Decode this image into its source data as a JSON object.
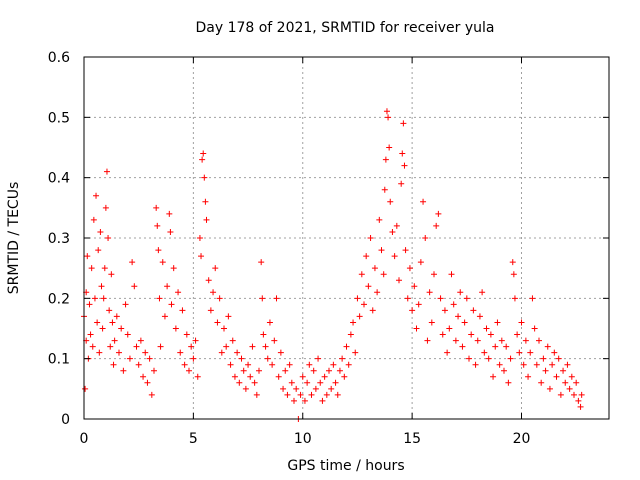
{
  "chart_data": {
    "type": "scatter",
    "title": "Day 178 of 2021, SRMTID for receiver yula",
    "xlabel": "GPS time / hours",
    "ylabel": "SRMTID / TECUs",
    "xlim": [
      0,
      24
    ],
    "ylim": [
      0,
      0.6
    ],
    "xticks": [
      0,
      5,
      10,
      15,
      20
    ],
    "yticks": [
      0,
      0.1,
      0.2,
      0.3,
      0.4,
      0.5,
      0.6
    ],
    "xtick_labels": [
      "0",
      "5",
      "10",
      "15",
      "20"
    ],
    "ytick_labels": [
      "0",
      "0.1",
      "0.2",
      "0.3",
      "0.4",
      "0.5",
      "0.6"
    ],
    "grid": true,
    "marker": "+",
    "color": "#ff0000",
    "series": [
      {
        "name": "SRMTID",
        "points": [
          [
            0.0,
            0.17
          ],
          [
            0.05,
            0.05
          ],
          [
            0.1,
            0.21
          ],
          [
            0.1,
            0.13
          ],
          [
            0.15,
            0.27
          ],
          [
            0.2,
            0.1
          ],
          [
            0.25,
            0.19
          ],
          [
            0.3,
            0.14
          ],
          [
            0.35,
            0.25
          ],
          [
            0.4,
            0.12
          ],
          [
            0.45,
            0.33
          ],
          [
            0.5,
            0.2
          ],
          [
            0.55,
            0.37
          ],
          [
            0.6,
            0.16
          ],
          [
            0.65,
            0.28
          ],
          [
            0.7,
            0.11
          ],
          [
            0.75,
            0.31
          ],
          [
            0.8,
            0.22
          ],
          [
            0.85,
            0.15
          ],
          [
            0.9,
            0.2
          ],
          [
            0.95,
            0.25
          ],
          [
            1.0,
            0.35
          ],
          [
            1.05,
            0.41
          ],
          [
            1.1,
            0.3
          ],
          [
            1.15,
            0.18
          ],
          [
            1.2,
            0.12
          ],
          [
            1.25,
            0.24
          ],
          [
            1.3,
            0.16
          ],
          [
            1.35,
            0.09
          ],
          [
            1.4,
            0.13
          ],
          [
            1.5,
            0.17
          ],
          [
            1.6,
            0.11
          ],
          [
            1.7,
            0.15
          ],
          [
            1.8,
            0.08
          ],
          [
            1.9,
            0.19
          ],
          [
            2.0,
            0.14
          ],
          [
            2.1,
            0.1
          ],
          [
            2.2,
            0.26
          ],
          [
            2.3,
            0.22
          ],
          [
            2.4,
            0.12
          ],
          [
            2.5,
            0.09
          ],
          [
            2.6,
            0.13
          ],
          [
            2.7,
            0.07
          ],
          [
            2.8,
            0.11
          ],
          [
            2.9,
            0.06
          ],
          [
            3.0,
            0.1
          ],
          [
            3.1,
            0.04
          ],
          [
            3.2,
            0.08
          ],
          [
            3.3,
            0.35
          ],
          [
            3.35,
            0.32
          ],
          [
            3.4,
            0.28
          ],
          [
            3.45,
            0.2
          ],
          [
            3.5,
            0.12
          ],
          [
            3.6,
            0.26
          ],
          [
            3.7,
            0.17
          ],
          [
            3.8,
            0.22
          ],
          [
            3.9,
            0.34
          ],
          [
            3.95,
            0.31
          ],
          [
            4.0,
            0.19
          ],
          [
            4.1,
            0.25
          ],
          [
            4.2,
            0.15
          ],
          [
            4.3,
            0.21
          ],
          [
            4.4,
            0.11
          ],
          [
            4.5,
            0.18
          ],
          [
            4.6,
            0.09
          ],
          [
            4.7,
            0.14
          ],
          [
            4.8,
            0.08
          ],
          [
            4.9,
            0.12
          ],
          [
            5.0,
            0.1
          ],
          [
            5.1,
            0.13
          ],
          [
            5.2,
            0.07
          ],
          [
            5.3,
            0.3
          ],
          [
            5.35,
            0.27
          ],
          [
            5.4,
            0.43
          ],
          [
            5.45,
            0.44
          ],
          [
            5.5,
            0.4
          ],
          [
            5.55,
            0.36
          ],
          [
            5.6,
            0.33
          ],
          [
            5.7,
            0.23
          ],
          [
            5.8,
            0.18
          ],
          [
            5.9,
            0.21
          ],
          [
            6.0,
            0.25
          ],
          [
            6.1,
            0.16
          ],
          [
            6.2,
            0.2
          ],
          [
            6.3,
            0.11
          ],
          [
            6.4,
            0.15
          ],
          [
            6.5,
            0.12
          ],
          [
            6.6,
            0.17
          ],
          [
            6.7,
            0.09
          ],
          [
            6.8,
            0.13
          ],
          [
            6.9,
            0.07
          ],
          [
            7.0,
            0.11
          ],
          [
            7.1,
            0.06
          ],
          [
            7.2,
            0.1
          ],
          [
            7.3,
            0.08
          ],
          [
            7.4,
            0.05
          ],
          [
            7.5,
            0.09
          ],
          [
            7.6,
            0.07
          ],
          [
            7.7,
            0.12
          ],
          [
            7.8,
            0.06
          ],
          [
            7.9,
            0.04
          ],
          [
            8.0,
            0.08
          ],
          [
            8.1,
            0.26
          ],
          [
            8.15,
            0.2
          ],
          [
            8.2,
            0.14
          ],
          [
            8.3,
            0.12
          ],
          [
            8.4,
            0.1
          ],
          [
            8.5,
            0.16
          ],
          [
            8.6,
            0.09
          ],
          [
            8.7,
            0.13
          ],
          [
            8.8,
            0.2
          ],
          [
            8.9,
            0.07
          ],
          [
            9.0,
            0.11
          ],
          [
            9.1,
            0.05
          ],
          [
            9.2,
            0.08
          ],
          [
            9.3,
            0.04
          ],
          [
            9.4,
            0.09
          ],
          [
            9.5,
            0.06
          ],
          [
            9.6,
            0.03
          ],
          [
            9.7,
            0.05
          ],
          [
            9.8,
            0.0
          ],
          [
            9.9,
            0.04
          ],
          [
            10.0,
            0.07
          ],
          [
            10.1,
            0.03
          ],
          [
            10.2,
            0.06
          ],
          [
            10.3,
            0.09
          ],
          [
            10.4,
            0.04
          ],
          [
            10.5,
            0.08
          ],
          [
            10.6,
            0.05
          ],
          [
            10.7,
            0.1
          ],
          [
            10.8,
            0.06
          ],
          [
            10.9,
            0.03
          ],
          [
            11.0,
            0.07
          ],
          [
            11.1,
            0.04
          ],
          [
            11.2,
            0.08
          ],
          [
            11.3,
            0.05
          ],
          [
            11.4,
            0.09
          ],
          [
            11.5,
            0.06
          ],
          [
            11.6,
            0.04
          ],
          [
            11.7,
            0.08
          ],
          [
            11.8,
            0.1
          ],
          [
            11.9,
            0.07
          ],
          [
            12.0,
            0.12
          ],
          [
            12.1,
            0.09
          ],
          [
            12.2,
            0.14
          ],
          [
            12.3,
            0.16
          ],
          [
            12.4,
            0.11
          ],
          [
            12.5,
            0.2
          ],
          [
            12.6,
            0.17
          ],
          [
            12.7,
            0.24
          ],
          [
            12.8,
            0.19
          ],
          [
            12.9,
            0.27
          ],
          [
            13.0,
            0.22
          ],
          [
            13.1,
            0.3
          ],
          [
            13.2,
            0.18
          ],
          [
            13.3,
            0.25
          ],
          [
            13.4,
            0.21
          ],
          [
            13.5,
            0.33
          ],
          [
            13.6,
            0.28
          ],
          [
            13.7,
            0.24
          ],
          [
            13.75,
            0.38
          ],
          [
            13.8,
            0.43
          ],
          [
            13.85,
            0.51
          ],
          [
            13.9,
            0.5
          ],
          [
            13.95,
            0.45
          ],
          [
            14.0,
            0.36
          ],
          [
            14.1,
            0.31
          ],
          [
            14.2,
            0.27
          ],
          [
            14.3,
            0.32
          ],
          [
            14.4,
            0.23
          ],
          [
            14.5,
            0.39
          ],
          [
            14.55,
            0.44
          ],
          [
            14.6,
            0.49
          ],
          [
            14.65,
            0.42
          ],
          [
            14.7,
            0.28
          ],
          [
            14.8,
            0.2
          ],
          [
            14.9,
            0.25
          ],
          [
            15.0,
            0.18
          ],
          [
            15.1,
            0.22
          ],
          [
            15.2,
            0.15
          ],
          [
            15.3,
            0.19
          ],
          [
            15.4,
            0.26
          ],
          [
            15.5,
            0.36
          ],
          [
            15.6,
            0.3
          ],
          [
            15.7,
            0.13
          ],
          [
            15.8,
            0.21
          ],
          [
            15.9,
            0.16
          ],
          [
            16.0,
            0.24
          ],
          [
            16.1,
            0.32
          ],
          [
            16.2,
            0.34
          ],
          [
            16.3,
            0.2
          ],
          [
            16.4,
            0.14
          ],
          [
            16.5,
            0.18
          ],
          [
            16.6,
            0.11
          ],
          [
            16.7,
            0.15
          ],
          [
            16.8,
            0.24
          ],
          [
            16.9,
            0.19
          ],
          [
            17.0,
            0.13
          ],
          [
            17.1,
            0.17
          ],
          [
            17.2,
            0.21
          ],
          [
            17.3,
            0.12
          ],
          [
            17.4,
            0.16
          ],
          [
            17.5,
            0.2
          ],
          [
            17.6,
            0.1
          ],
          [
            17.7,
            0.14
          ],
          [
            17.8,
            0.18
          ],
          [
            17.9,
            0.09
          ],
          [
            18.0,
            0.13
          ],
          [
            18.1,
            0.17
          ],
          [
            18.2,
            0.21
          ],
          [
            18.3,
            0.11
          ],
          [
            18.4,
            0.15
          ],
          [
            18.5,
            0.1
          ],
          [
            18.6,
            0.14
          ],
          [
            18.7,
            0.07
          ],
          [
            18.8,
            0.12
          ],
          [
            18.9,
            0.16
          ],
          [
            19.0,
            0.09
          ],
          [
            19.1,
            0.13
          ],
          [
            19.2,
            0.08
          ],
          [
            19.3,
            0.12
          ],
          [
            19.4,
            0.06
          ],
          [
            19.5,
            0.1
          ],
          [
            19.6,
            0.26
          ],
          [
            19.65,
            0.24
          ],
          [
            19.7,
            0.2
          ],
          [
            19.8,
            0.14
          ],
          [
            19.9,
            0.11
          ],
          [
            20.0,
            0.16
          ],
          [
            20.1,
            0.09
          ],
          [
            20.2,
            0.13
          ],
          [
            20.3,
            0.07
          ],
          [
            20.4,
            0.11
          ],
          [
            20.5,
            0.2
          ],
          [
            20.6,
            0.15
          ],
          [
            20.7,
            0.09
          ],
          [
            20.8,
            0.13
          ],
          [
            20.9,
            0.06
          ],
          [
            21.0,
            0.1
          ],
          [
            21.1,
            0.08
          ],
          [
            21.2,
            0.12
          ],
          [
            21.3,
            0.05
          ],
          [
            21.4,
            0.09
          ],
          [
            21.5,
            0.11
          ],
          [
            21.6,
            0.07
          ],
          [
            21.7,
            0.1
          ],
          [
            21.8,
            0.04
          ],
          [
            21.9,
            0.08
          ],
          [
            22.0,
            0.06
          ],
          [
            22.1,
            0.09
          ],
          [
            22.2,
            0.05
          ],
          [
            22.3,
            0.07
          ],
          [
            22.4,
            0.04
          ],
          [
            22.5,
            0.06
          ],
          [
            22.6,
            0.03
          ],
          [
            22.7,
            0.02
          ],
          [
            22.75,
            0.04
          ]
        ]
      }
    ]
  }
}
